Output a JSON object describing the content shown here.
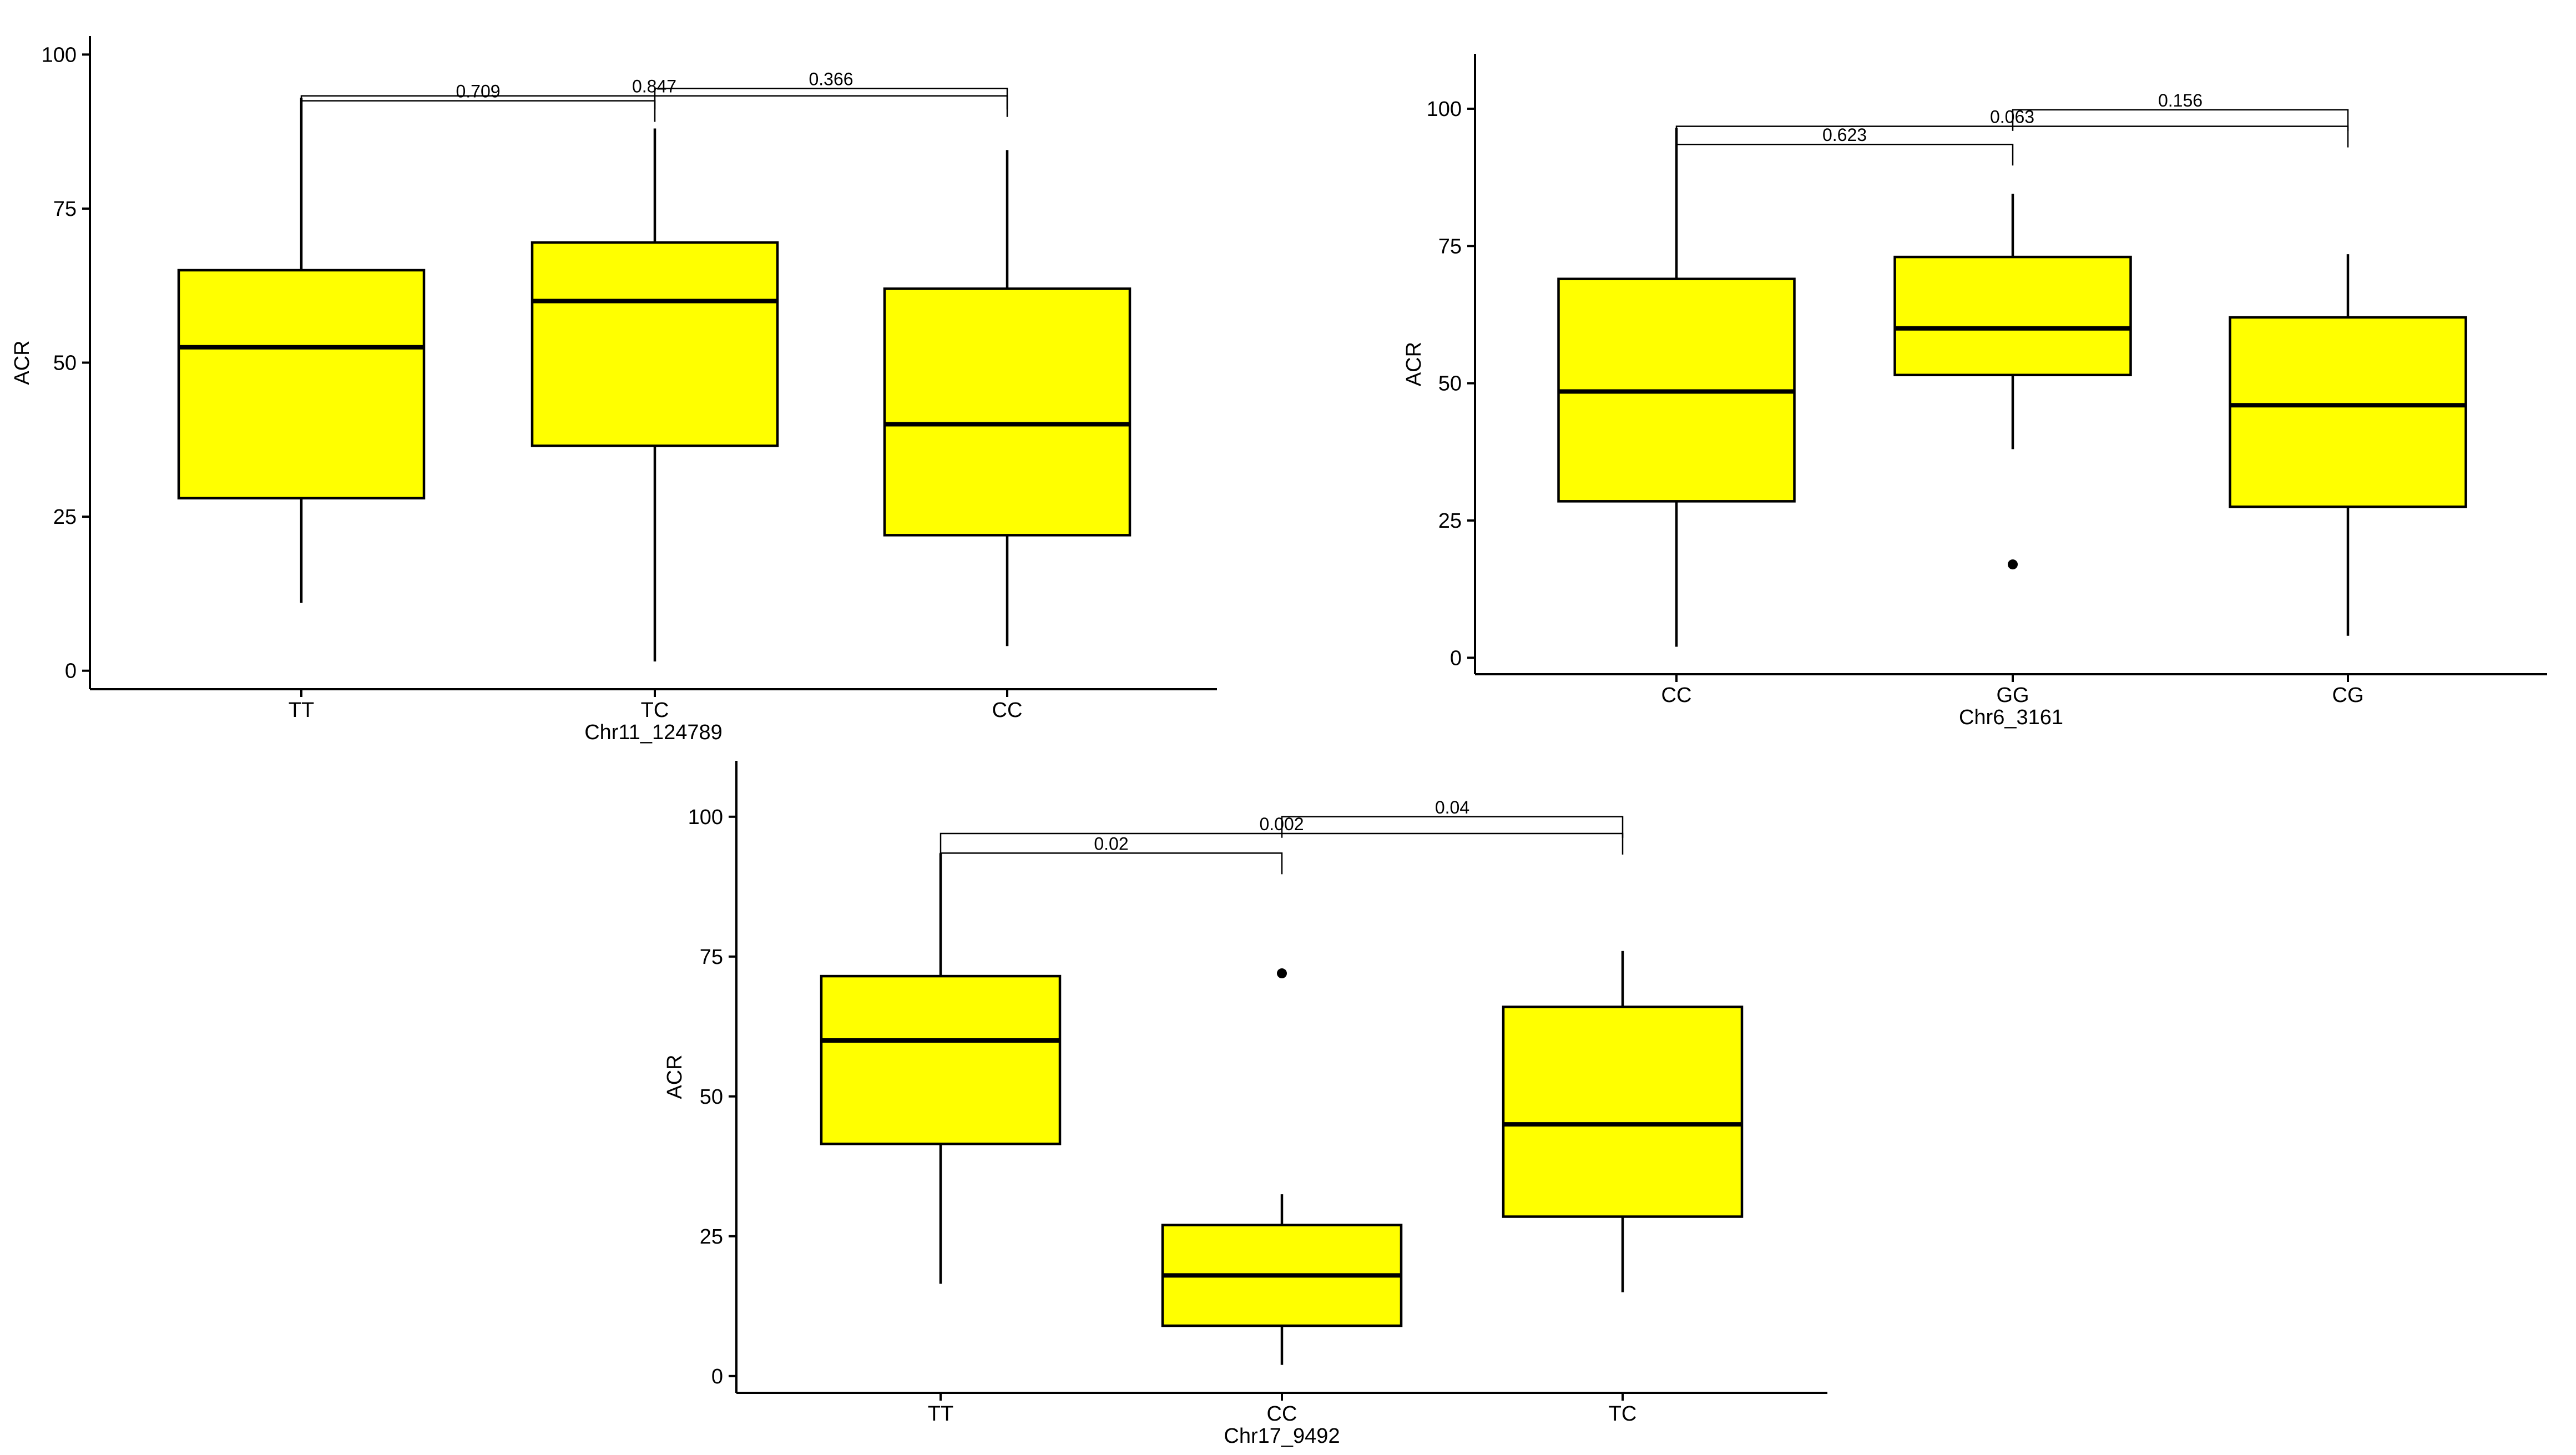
{
  "chart_data": [
    {
      "type": "box",
      "title": "",
      "xlabel": "Chr11_124789",
      "ylabel": "ACR",
      "ylim": [
        -3,
        103
      ],
      "yticks": [
        0,
        25,
        50,
        75,
        100
      ],
      "grid": false,
      "fill_color": "#FFFF00",
      "categories": [
        "TT",
        "TC",
        "CC"
      ],
      "boxes": [
        {
          "category": "TT",
          "whisker_low": 11,
          "q1": 28,
          "median": 52.5,
          "q3": 65,
          "whisker_high": 93,
          "outliers": []
        },
        {
          "category": "TC",
          "whisker_low": 1.5,
          "q1": 36.5,
          "median": 60,
          "q3": 69.5,
          "whisker_high": 88,
          "outliers": []
        },
        {
          "category": "CC",
          "whisker_low": 4,
          "q1": 22,
          "median": 40,
          "q3": 62,
          "whisker_high": 84.5,
          "outliers": []
        }
      ],
      "comparisons": [
        {
          "groups": [
            "TT",
            "TC"
          ],
          "p": "0.709",
          "y": 92.5
        },
        {
          "groups": [
            "TT",
            "CC"
          ],
          "p": "0.847",
          "y": 93.3
        },
        {
          "groups": [
            "TC",
            "CC"
          ],
          "p": "0.366",
          "y": 94.5
        }
      ]
    },
    {
      "type": "box",
      "title": "",
      "xlabel": "Chr6_3161",
      "ylabel": "ACR",
      "ylim": [
        -3,
        110
      ],
      "yticks": [
        0,
        25,
        50,
        75,
        100
      ],
      "grid": false,
      "fill_color": "#FFFF00",
      "categories": [
        "CC",
        "GG",
        "CG"
      ],
      "boxes": [
        {
          "category": "CC",
          "whisker_low": 2,
          "q1": 28.5,
          "median": 48.5,
          "q3": 69,
          "whisker_high": 96.5,
          "outliers": []
        },
        {
          "category": "GG",
          "whisker_low": 38,
          "q1": 51.5,
          "median": 60,
          "q3": 73,
          "whisker_high": 84.5,
          "outliers": [
            17
          ]
        },
        {
          "category": "CG",
          "whisker_low": 4,
          "q1": 27.5,
          "median": 46,
          "q3": 62,
          "whisker_high": 73.5,
          "outliers": []
        }
      ],
      "comparisons": [
        {
          "groups": [
            "CC",
            "GG"
          ],
          "p": "0.623",
          "y": 93.5
        },
        {
          "groups": [
            "CC",
            "CG"
          ],
          "p": "0.063",
          "y": 96.8
        },
        {
          "groups": [
            "GG",
            "CG"
          ],
          "p": "0.156",
          "y": 99.8
        }
      ]
    },
    {
      "type": "box",
      "title": "",
      "xlabel": "Chr17_9492",
      "ylabel": "ACR",
      "ylim": [
        -3,
        110
      ],
      "yticks": [
        0,
        25,
        50,
        75,
        100
      ],
      "grid": false,
      "fill_color": "#FFFF00",
      "categories": [
        "TT",
        "CC",
        "TC"
      ],
      "boxes": [
        {
          "category": "TT",
          "whisker_low": 16.5,
          "q1": 41.5,
          "median": 60,
          "q3": 71.5,
          "whisker_high": 93.5,
          "outliers": []
        },
        {
          "category": "CC",
          "whisker_low": 2,
          "q1": 9,
          "median": 18,
          "q3": 27,
          "whisker_high": 32.5,
          "outliers": [
            72
          ]
        },
        {
          "category": "TC",
          "whisker_low": 15,
          "q1": 28.5,
          "median": 45,
          "q3": 66,
          "whisker_high": 76,
          "outliers": []
        }
      ],
      "comparisons": [
        {
          "groups": [
            "TT",
            "CC"
          ],
          "p": "0.02",
          "y": 93.5
        },
        {
          "groups": [
            "TT",
            "TC"
          ],
          "p": "0.002",
          "y": 97
        },
        {
          "groups": [
            "CC",
            "TC"
          ],
          "p": "0.04",
          "y": 100
        }
      ]
    }
  ]
}
